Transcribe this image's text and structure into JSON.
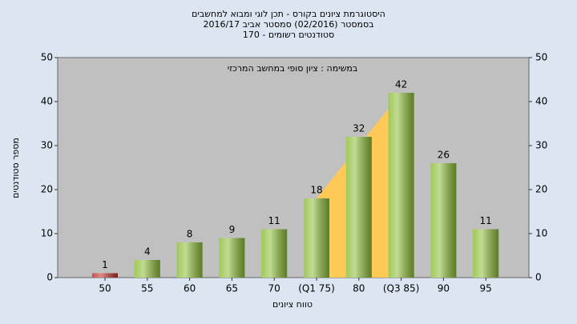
{
  "chart_data": {
    "type": "bar",
    "title": [
      "היסטוגרמת ציונים בקורס - תכן לוגי ומבוא למחשבים",
      "בסמסטר (02/2016) סמסטר אביב 2016/17",
      "סטודנטים רשומים - 170"
    ],
    "annotation": "במשימה : ציון סופי במחשב המרכזי",
    "x_label": "טווח ציונים",
    "y_label": "מספר סטודנטים",
    "categories": [
      "50",
      "55",
      "60",
      "65",
      "70",
      "(Q1 75)",
      "80",
      "(Q3 85)",
      "90",
      "95"
    ],
    "values": [
      1,
      4,
      8,
      9,
      11,
      18,
      32,
      42,
      26,
      11
    ],
    "colors": [
      "#c0302a",
      "#8fbf3a",
      "#8fbf3a",
      "#8fbf3a",
      "#8fbf3a",
      "#8fbf3a",
      "#8fbf3a",
      "#8fbf3a",
      "#8fbf3a",
      "#8fbf3a"
    ],
    "interquartile_color": "#ffc957",
    "ylim": [
      0,
      50
    ],
    "yticks": [
      0,
      10,
      20,
      30,
      40,
      50
    ],
    "y2lim": [
      0,
      50
    ],
    "y2ticks": [
      0,
      10,
      20,
      30,
      40,
      50
    ]
  }
}
